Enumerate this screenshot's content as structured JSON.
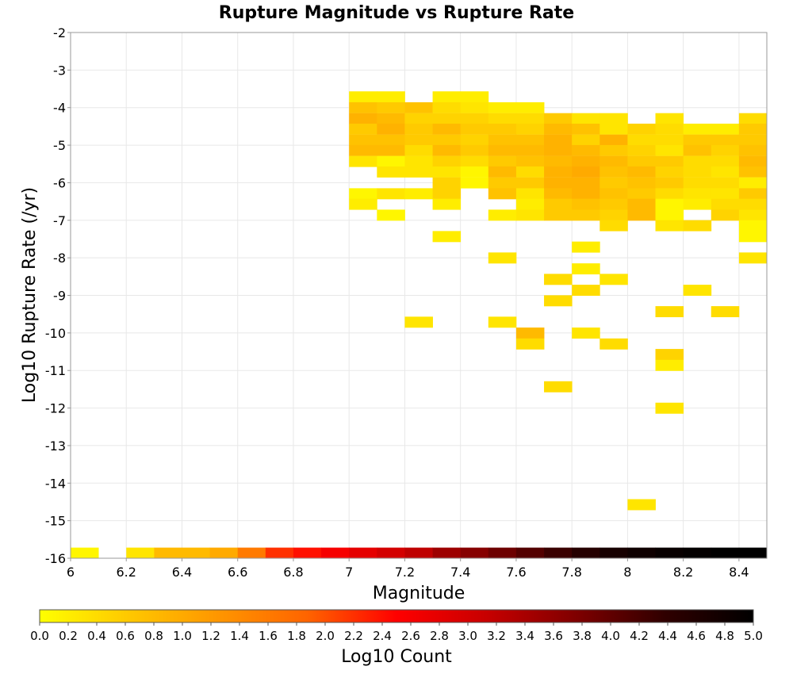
{
  "chart_data": {
    "type": "heatmap",
    "title": "Rupture Magnitude vs Rupture Rate",
    "xlabel": "Magnitude",
    "ylabel": "Log10 Rupture Rate (/yr)",
    "xlim": [
      6,
      8.5
    ],
    "ylim": [
      -16,
      -2
    ],
    "x_ticks": [
      "6",
      "6.2",
      "6.4",
      "6.6",
      "6.8",
      "7",
      "7.2",
      "7.4",
      "7.6",
      "7.8",
      "8",
      "8.2",
      "8.4"
    ],
    "y_ticks": [
      "-2",
      "-3",
      "-4",
      "-5",
      "-6",
      "-7",
      "-8",
      "-9",
      "-10",
      "-11",
      "-12",
      "-13",
      "-14",
      "-15",
      "-16"
    ],
    "grid": true,
    "bin_width_x": 0.1,
    "bin_height_y": 0.2857,
    "colorbar": {
      "label": "Log10 Count",
      "range": [
        0,
        5
      ],
      "ticks": [
        "0.0",
        "0.2",
        "0.4",
        "0.6",
        "0.8",
        "1.0",
        "1.2",
        "1.4",
        "1.6",
        "1.8",
        "2.0",
        "2.2",
        "2.4",
        "2.6",
        "2.8",
        "3.0",
        "3.2",
        "3.4",
        "3.6",
        "3.8",
        "4.0",
        "4.2",
        "4.4",
        "4.6",
        "4.8",
        "5.0"
      ],
      "colors": [
        "#ffff00",
        "#ffc800",
        "#ff9600",
        "#ff6400",
        "#ff0000",
        "#c80000",
        "#800000",
        "#300000",
        "#000000"
      ]
    },
    "columns": [
      {
        "m": 6.05,
        "cells": [
          [
            -15.86,
            0.1
          ]
        ]
      },
      {
        "m": 6.25,
        "cells": [
          [
            -15.86,
            0.3
          ]
        ]
      },
      {
        "m": 6.35,
        "cells": [
          [
            -15.86,
            0.8
          ]
        ]
      },
      {
        "m": 6.45,
        "cells": [
          [
            -15.86,
            0.8
          ]
        ]
      },
      {
        "m": 6.55,
        "cells": [
          [
            -15.86,
            1.0
          ]
        ]
      },
      {
        "m": 6.65,
        "cells": [
          [
            -15.86,
            1.6
          ]
        ]
      },
      {
        "m": 6.75,
        "cells": [
          [
            -15.86,
            2.2
          ]
        ]
      },
      {
        "m": 6.85,
        "cells": [
          [
            -15.86,
            2.4
          ]
        ]
      },
      {
        "m": 6.95,
        "cells": [
          [
            -15.86,
            2.6
          ]
        ]
      },
      {
        "m": 7.05,
        "cells": [
          [
            -3.71,
            0.2
          ],
          [
            -4.0,
            0.7
          ],
          [
            -4.29,
            0.9
          ],
          [
            -4.57,
            0.6
          ],
          [
            -4.86,
            0.7
          ],
          [
            -5.14,
            0.8
          ],
          [
            -5.43,
            0.3
          ],
          [
            -6.29,
            0.1
          ],
          [
            -6.57,
            0.2
          ],
          [
            -15.86,
            2.8
          ]
        ]
      },
      {
        "m": 7.15,
        "cells": [
          [
            -3.71,
            0.2
          ],
          [
            -4.0,
            0.6
          ],
          [
            -4.29,
            0.8
          ],
          [
            -4.57,
            0.9
          ],
          [
            -4.86,
            0.7
          ],
          [
            -5.14,
            0.8
          ],
          [
            -5.43,
            0.1
          ],
          [
            -5.71,
            0.3
          ],
          [
            -6.29,
            0.3
          ],
          [
            -6.86,
            0.1
          ],
          [
            -15.86,
            3.0
          ]
        ]
      },
      {
        "m": 7.25,
        "cells": [
          [
            -4.0,
            0.7
          ],
          [
            -4.29,
            0.5
          ],
          [
            -4.57,
            0.6
          ],
          [
            -4.86,
            0.6
          ],
          [
            -5.14,
            0.4
          ],
          [
            -5.43,
            0.3
          ],
          [
            -5.71,
            0.3
          ],
          [
            -6.29,
            0.2
          ],
          [
            -9.71,
            0.3
          ],
          [
            -15.86,
            3.2
          ]
        ]
      },
      {
        "m": 7.35,
        "cells": [
          [
            -3.71,
            0.2
          ],
          [
            -4.0,
            0.4
          ],
          [
            -4.29,
            0.5
          ],
          [
            -4.57,
            0.8
          ],
          [
            -4.86,
            0.6
          ],
          [
            -5.14,
            0.8
          ],
          [
            -5.43,
            0.5
          ],
          [
            -5.71,
            0.3
          ],
          [
            -6.0,
            0.5
          ],
          [
            -6.29,
            0.5
          ],
          [
            -6.57,
            0.2
          ],
          [
            -7.43,
            0.2
          ],
          [
            -15.86,
            3.5
          ]
        ]
      },
      {
        "m": 7.45,
        "cells": [
          [
            -3.71,
            0.2
          ],
          [
            -4.0,
            0.3
          ],
          [
            -4.29,
            0.5
          ],
          [
            -4.57,
            0.6
          ],
          [
            -4.86,
            0.5
          ],
          [
            -5.14,
            0.6
          ],
          [
            -5.43,
            0.4
          ],
          [
            -5.71,
            0.1
          ],
          [
            -6.0,
            0.1
          ],
          [
            -15.86,
            3.7
          ]
        ]
      },
      {
        "m": 7.55,
        "cells": [
          [
            -4.0,
            0.2
          ],
          [
            -4.29,
            0.4
          ],
          [
            -4.57,
            0.6
          ],
          [
            -4.86,
            0.7
          ],
          [
            -5.14,
            0.8
          ],
          [
            -5.43,
            0.6
          ],
          [
            -5.71,
            0.8
          ],
          [
            -6.0,
            0.6
          ],
          [
            -6.29,
            0.7
          ],
          [
            -6.86,
            0.2
          ],
          [
            -8.0,
            0.3
          ],
          [
            -9.71,
            0.3
          ],
          [
            -15.86,
            3.9
          ]
        ]
      },
      {
        "m": 7.65,
        "cells": [
          [
            -4.0,
            0.2
          ],
          [
            -4.29,
            0.4
          ],
          [
            -4.57,
            0.5
          ],
          [
            -4.86,
            0.7
          ],
          [
            -5.14,
            0.8
          ],
          [
            -5.43,
            0.7
          ],
          [
            -5.71,
            0.4
          ],
          [
            -6.0,
            0.6
          ],
          [
            -6.29,
            0.3
          ],
          [
            -6.57,
            0.2
          ],
          [
            -6.86,
            0.3
          ],
          [
            -10.0,
            0.8
          ],
          [
            -10.29,
            0.4
          ],
          [
            -15.86,
            4.1
          ]
        ]
      },
      {
        "m": 7.75,
        "cells": [
          [
            -4.29,
            0.6
          ],
          [
            -4.57,
            0.8
          ],
          [
            -4.86,
            0.9
          ],
          [
            -5.14,
            0.9
          ],
          [
            -5.43,
            0.8
          ],
          [
            -5.71,
            0.9
          ],
          [
            -6.0,
            0.9
          ],
          [
            -6.29,
            0.8
          ],
          [
            -6.57,
            0.6
          ],
          [
            -6.86,
            0.6
          ],
          [
            -8.57,
            0.4
          ],
          [
            -9.14,
            0.4
          ],
          [
            -11.43,
            0.4
          ],
          [
            -15.86,
            4.3
          ]
        ]
      },
      {
        "m": 7.85,
        "cells": [
          [
            -4.29,
            0.3
          ],
          [
            -4.57,
            0.7
          ],
          [
            -4.86,
            0.5
          ],
          [
            -5.14,
            0.8
          ],
          [
            -5.43,
            0.9
          ],
          [
            -5.71,
            1.0
          ],
          [
            -6.0,
            0.9
          ],
          [
            -6.29,
            0.9
          ],
          [
            -6.57,
            0.7
          ],
          [
            -6.86,
            0.6
          ],
          [
            -7.71,
            0.2
          ],
          [
            -8.29,
            0.2
          ],
          [
            -8.86,
            0.4
          ],
          [
            -10.0,
            0.3
          ],
          [
            -15.86,
            4.5
          ]
        ]
      },
      {
        "m": 7.95,
        "cells": [
          [
            -4.29,
            0.3
          ],
          [
            -4.57,
            0.3
          ],
          [
            -4.86,
            0.9
          ],
          [
            -5.14,
            0.6
          ],
          [
            -5.43,
            0.8
          ],
          [
            -5.71,
            0.7
          ],
          [
            -6.0,
            0.6
          ],
          [
            -6.29,
            0.7
          ],
          [
            -6.57,
            0.6
          ],
          [
            -6.86,
            0.5
          ],
          [
            -7.14,
            0.4
          ],
          [
            -8.57,
            0.3
          ],
          [
            -10.29,
            0.4
          ],
          [
            -15.86,
            4.7
          ]
        ]
      },
      {
        "m": 8.05,
        "cells": [
          [
            -4.57,
            0.5
          ],
          [
            -4.86,
            0.4
          ],
          [
            -5.14,
            0.5
          ],
          [
            -5.43,
            0.6
          ],
          [
            -5.71,
            0.8
          ],
          [
            -6.0,
            0.7
          ],
          [
            -6.29,
            0.6
          ],
          [
            -6.57,
            0.8
          ],
          [
            -6.86,
            0.8
          ],
          [
            -14.57,
            0.3
          ],
          [
            -15.86,
            4.8
          ]
        ]
      },
      {
        "m": 8.15,
        "cells": [
          [
            -4.29,
            0.3
          ],
          [
            -4.57,
            0.4
          ],
          [
            -4.86,
            0.4
          ],
          [
            -5.14,
            0.3
          ],
          [
            -5.43,
            0.6
          ],
          [
            -5.71,
            0.5
          ],
          [
            -6.0,
            0.6
          ],
          [
            -6.29,
            0.4
          ],
          [
            -6.57,
            0.1
          ],
          [
            -6.86,
            0.1
          ],
          [
            -7.14,
            0.3
          ],
          [
            -9.43,
            0.4
          ],
          [
            -10.57,
            0.5
          ],
          [
            -10.86,
            0.2
          ],
          [
            -12.0,
            0.3
          ],
          [
            -15.86,
            4.9
          ]
        ]
      },
      {
        "m": 8.25,
        "cells": [
          [
            -4.57,
            0.2
          ],
          [
            -4.86,
            0.6
          ],
          [
            -5.14,
            0.7
          ],
          [
            -5.43,
            0.4
          ],
          [
            -5.71,
            0.4
          ],
          [
            -6.0,
            0.4
          ],
          [
            -6.29,
            0.3
          ],
          [
            -6.57,
            0.2
          ],
          [
            -7.14,
            0.4
          ],
          [
            -8.86,
            0.3
          ],
          [
            -15.86,
            4.95
          ]
        ]
      },
      {
        "m": 8.35,
        "cells": [
          [
            -4.57,
            0.2
          ],
          [
            -4.86,
            0.6
          ],
          [
            -5.14,
            0.5
          ],
          [
            -5.43,
            0.4
          ],
          [
            -5.71,
            0.3
          ],
          [
            -6.0,
            0.4
          ],
          [
            -6.29,
            0.3
          ],
          [
            -6.57,
            0.4
          ],
          [
            -6.86,
            0.5
          ],
          [
            -9.43,
            0.4
          ],
          [
            -15.86,
            5.0
          ]
        ]
      },
      {
        "m": 8.45,
        "cells": [
          [
            -4.29,
            0.4
          ],
          [
            -4.57,
            0.6
          ],
          [
            -4.86,
            0.6
          ],
          [
            -5.14,
            0.7
          ],
          [
            -5.43,
            0.8
          ],
          [
            -5.71,
            0.7
          ],
          [
            -6.0,
            0.2
          ],
          [
            -6.29,
            0.6
          ],
          [
            -6.57,
            0.4
          ],
          [
            -6.86,
            0.3
          ],
          [
            -7.14,
            0.1
          ],
          [
            -7.43,
            0.1
          ],
          [
            -8.0,
            0.3
          ],
          [
            -15.86,
            5.0
          ]
        ]
      }
    ]
  }
}
